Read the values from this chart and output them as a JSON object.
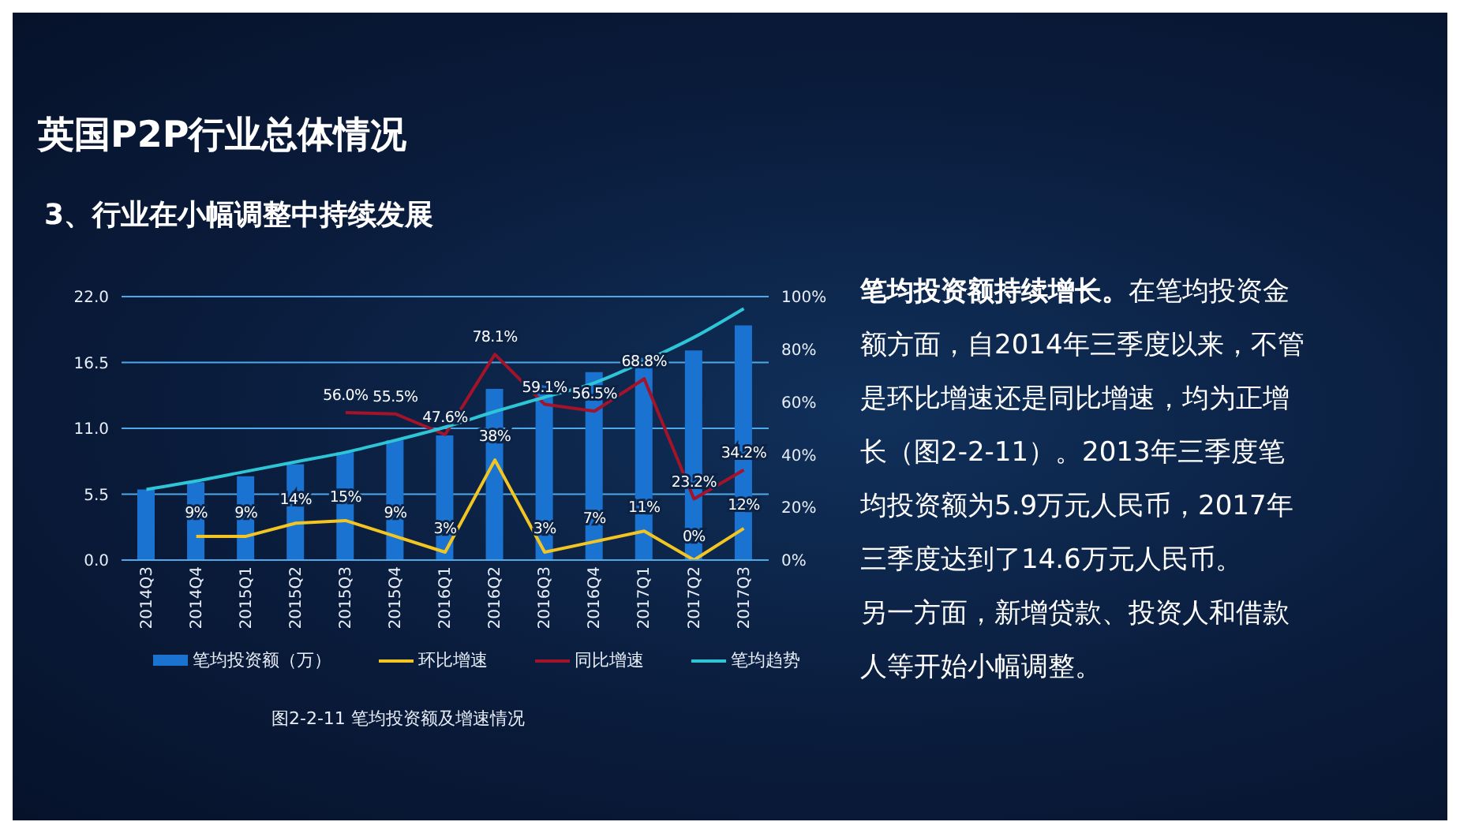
{
  "chart_data": {
    "type": "bar",
    "title": "英国P2P行业总体情况",
    "subtitle": "3、行业在小幅调整中持续发展",
    "categories": [
      "2014Q3",
      "2014Q4",
      "2015Q1",
      "2015Q2",
      "2015Q3",
      "2015Q4",
      "2016Q1",
      "2016Q2",
      "2016Q3",
      "2016Q4",
      "2017Q1",
      "2017Q2",
      "2017Q3"
    ],
    "series": [
      {
        "name": "笔均投资额（万）",
        "color": "#1a73d1",
        "values": [
          5.9,
          6.5,
          7.0,
          8.0,
          9.0,
          10.0,
          10.4,
          14.3,
          14.6,
          15.7,
          16.9,
          17.5,
          19.6
        ]
      },
      {
        "name": "环比增速",
        "type": "line",
        "axis": "y2",
        "color": "#f2c522",
        "values": [
          null,
          9,
          9,
          14,
          15,
          9,
          3,
          38,
          3,
          7,
          11,
          0,
          12
        ],
        "value_labels": [
          null,
          "9%",
          "9%",
          "14%",
          "15%",
          "9%",
          "3%",
          "38%",
          "3%",
          "7%",
          "11%",
          "0%",
          "12%"
        ]
      },
      {
        "name": "同比增速",
        "type": "line",
        "axis": "y2",
        "color": "#a3132a",
        "values": [
          null,
          null,
          null,
          null,
          56.0,
          55.5,
          47.6,
          78.1,
          59.1,
          56.5,
          68.8,
          23.2,
          34.2
        ],
        "value_labels": [
          null,
          null,
          null,
          null,
          "56.0%",
          "55.5%",
          "47.6%",
          "78.1%",
          "59.1%",
          "56.5%",
          "68.8%",
          "23.2%",
          "34.2%"
        ]
      },
      {
        "name": "笔均趋势",
        "type": "line",
        "color": "#2ec6d6",
        "values": [
          5.9,
          6.6,
          7.4,
          8.2,
          9.0,
          10.0,
          11.1,
          12.4,
          13.6,
          14.8,
          16.6,
          18.6,
          21.0
        ]
      }
    ],
    "ylim": [
      0,
      22
    ],
    "yticks": [
      {
        "value": 0,
        "label": "0.0"
      },
      {
        "value": 5.5,
        "label": "5.5"
      },
      {
        "value": 11,
        "label": "11.0"
      },
      {
        "value": 16.5,
        "label": "16.5"
      },
      {
        "value": 22,
        "label": "22.0"
      }
    ],
    "y2lim": [
      0,
      100
    ],
    "y2ticks": [
      {
        "value": 0,
        "label": "0%"
      },
      {
        "value": 20,
        "label": "20%"
      },
      {
        "value": 40,
        "label": "40%"
      },
      {
        "value": 60,
        "label": "60%"
      },
      {
        "value": 80,
        "label": "80%"
      },
      {
        "value": 100,
        "label": "100%"
      }
    ],
    "grid": "y",
    "legend": "bottom",
    "marker": "none",
    "annotations": [
      "图2-2-11 笔均投资额及增速情况",
      "笔均投资额持续增长。",
      "在笔均投资金额方面，自2014年三季度以来，不管是环比增速还是同比增速，均为正增长（图2-2-11）。2013年三季度笔均投资额为5.9万元人民币，2017年三季度达到了14.6万元人民币。",
      "另一方面，新增贷款、投资人和借款人等开始小幅调整。"
    ]
  }
}
